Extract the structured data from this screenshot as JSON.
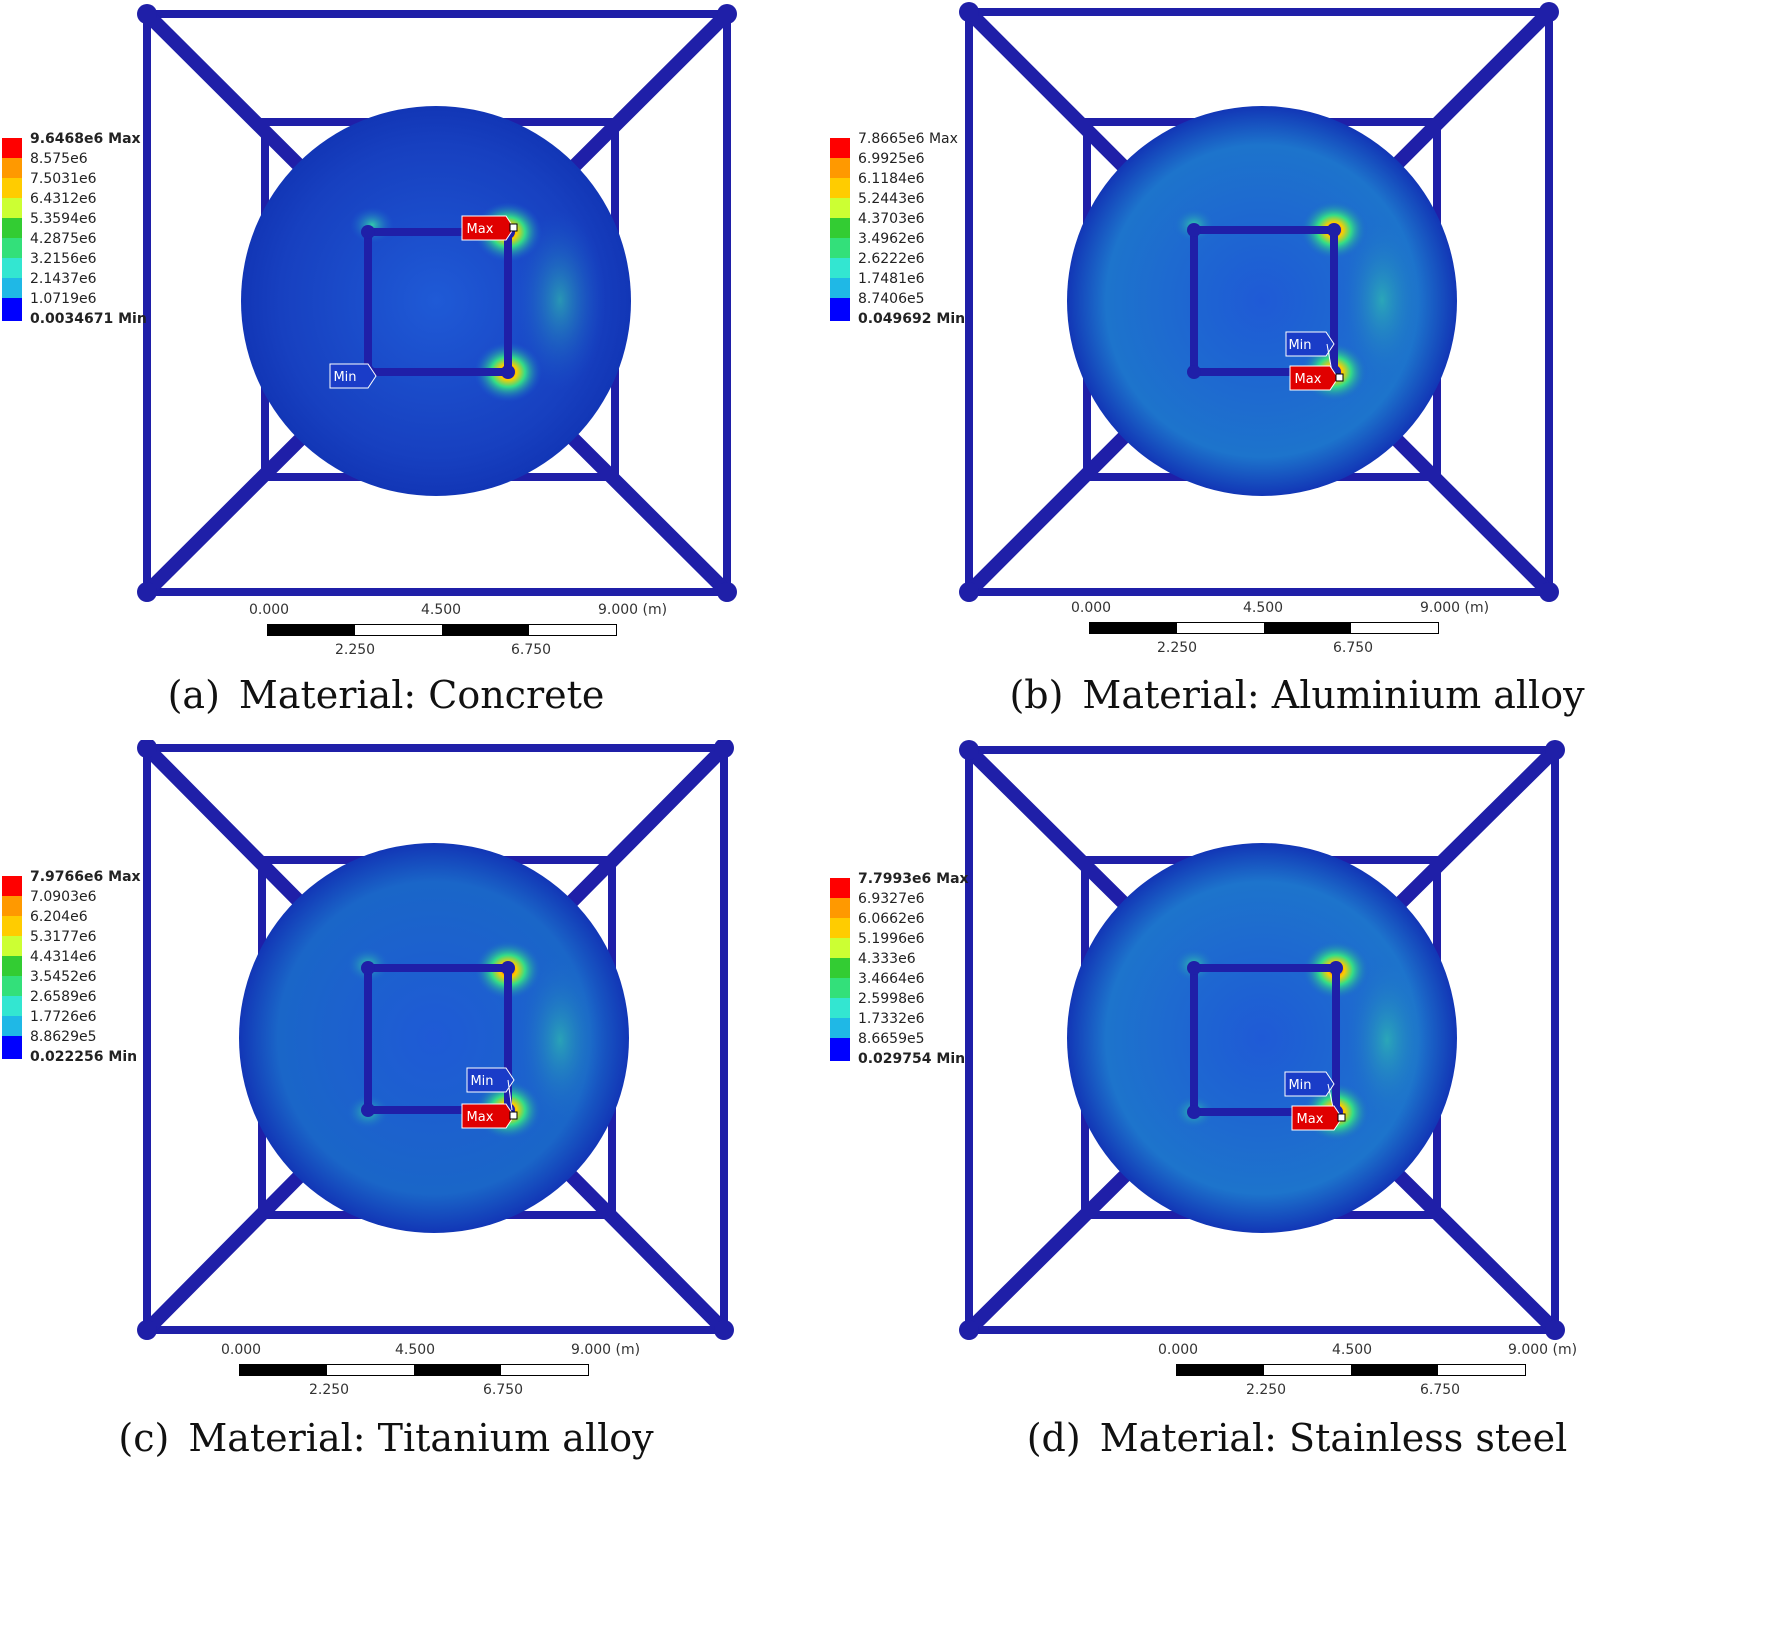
{
  "colors": {
    "frame": "#1f1fa8",
    "disk": "#1133b8",
    "legend": [
      "#ff0000",
      "#ff9900",
      "#ffcc00",
      "#ccff33",
      "#33cc33",
      "#33e07a",
      "#33e6d1",
      "#1fb8e6",
      "#1f78e0",
      "#0000ff"
    ]
  },
  "panels": [
    {
      "caption": "(a) Material: Concrete",
      "legend": [
        "9.6468e6 Max",
        "8.575e6",
        "7.5031e6",
        "6.4312e6",
        "5.3594e6",
        "4.2875e6",
        "3.2156e6",
        "2.1437e6",
        "1.0719e6",
        "0.0034671 Min"
      ],
      "probes": {
        "max": "Max",
        "min": "Min"
      },
      "scale": {
        "top": [
          "0.000",
          "4.500",
          "9.000 (m)"
        ],
        "bottom": [
          "2.250",
          "6.750"
        ]
      }
    },
    {
      "caption": "(b) Material: Aluminium alloy",
      "legend": [
        "7.8665e6 Max",
        "6.9925e6",
        "6.1184e6",
        "5.2443e6",
        "4.3703e6",
        "3.4962e6",
        "2.6222e6",
        "1.7481e6",
        "8.7406e5",
        "0.049692 Min"
      ],
      "probes": {
        "max": "Max",
        "min": "Min"
      },
      "scale": {
        "top": [
          "0.000",
          "4.500",
          "9.000 (m)"
        ],
        "bottom": [
          "2.250",
          "6.750"
        ]
      }
    },
    {
      "caption": "(c) Material: Titanium alloy",
      "legend": [
        "7.9766e6 Max",
        "7.0903e6",
        "6.204e6",
        "5.3177e6",
        "4.4314e6",
        "3.5452e6",
        "2.6589e6",
        "1.7726e6",
        "8.8629e5",
        "0.022256 Min"
      ],
      "probes": {
        "max": "Max",
        "min": "Min"
      },
      "scale": {
        "top": [
          "0.000",
          "4.500",
          "9.000 (m)"
        ],
        "bottom": [
          "2.250",
          "6.750"
        ]
      }
    },
    {
      "caption": "(d) Material: Stainless steel",
      "legend": [
        "7.7993e6 Max",
        "6.9327e6",
        "6.0662e6",
        "5.1996e6",
        "4.333e6",
        "3.4664e6",
        "2.5998e6",
        "1.7332e6",
        "8.6659e5",
        "0.029754 Min"
      ],
      "probes": {
        "max": "Max",
        "min": "Min"
      },
      "scale": {
        "top": [
          "0.000",
          "4.500",
          "9.000 (m)"
        ],
        "bottom": [
          "2.250",
          "6.750"
        ]
      }
    }
  ]
}
